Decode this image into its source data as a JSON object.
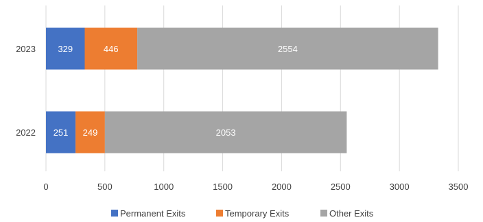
{
  "chart_data": {
    "type": "bar",
    "orientation": "horizontal",
    "stacked": true,
    "categories": [
      "2023",
      "2022"
    ],
    "series": [
      {
        "name": "Permanent Exits",
        "values": [
          329,
          251
        ],
        "color": "#4472C4"
      },
      {
        "name": "Temporary Exits",
        "values": [
          446,
          249
        ],
        "color": "#ED7D31"
      },
      {
        "name": "Other Exits",
        "values": [
          2554,
          2053
        ],
        "color": "#A5A5A5"
      }
    ],
    "xlim": [
      0,
      3500
    ],
    "xticks": [
      "0",
      "500",
      "1000",
      "1500",
      "2000",
      "2500",
      "3000",
      "3500"
    ],
    "grid": "vertical",
    "legend_position": "bottom",
    "data_labels": true
  }
}
